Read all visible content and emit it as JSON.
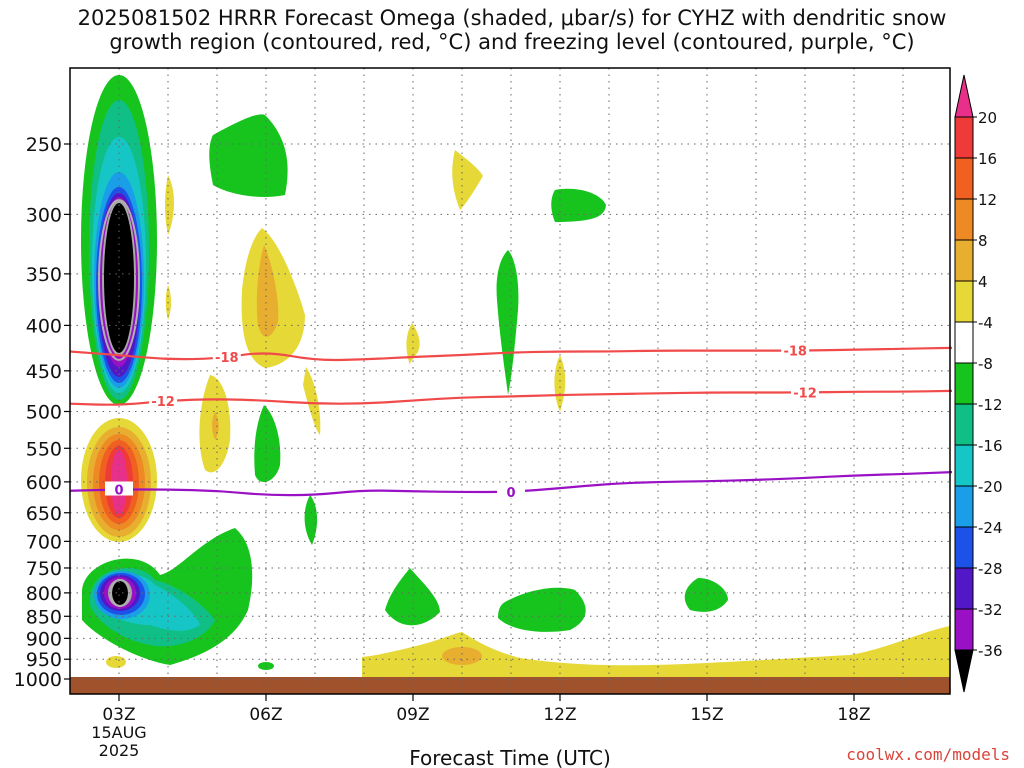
{
  "title": "2025081502 HRRR Forecast Omega (shaded, μbar/s) for CYHZ with dendritic snow\ngrowth region (contoured, red, °C) and freezing level (contoured, purple, °C)",
  "credit": "coolwx.com/models",
  "chart_data": {
    "type": "time-height cross-section",
    "title": "2025081502 HRRR Forecast Omega (shaded, μbar/s) for CYHZ with dendritic snow growth region (contoured, red, °C) and freezing level (contoured, purple, °C)",
    "xlabel": "Forecast Time (UTC)",
    "ylabel": "",
    "x_ticks": [
      {
        "hour": 3,
        "label": "03Z",
        "sub": [
          "15AUG",
          "2025"
        ]
      },
      {
        "hour": 6,
        "label": "06Z"
      },
      {
        "hour": 9,
        "label": "09Z"
      },
      {
        "hour": 12,
        "label": "12Z"
      },
      {
        "hour": 15,
        "label": "15Z"
      },
      {
        "hour": 18,
        "label": "18Z"
      }
    ],
    "xlim": [
      2,
      20
    ],
    "y_ticks": [
      250,
      300,
      350,
      400,
      450,
      500,
      550,
      600,
      650,
      700,
      750,
      800,
      850,
      900,
      950,
      1000
    ],
    "ylim_hPa": [
      200,
      1010
    ],
    "colorbar": {
      "labels": [
        20,
        16,
        12,
        8,
        4,
        -4,
        -8,
        -12,
        -16,
        -20,
        -24,
        -28,
        -32,
        -36
      ],
      "colors": [
        "#e8308a",
        "#ef3a3a",
        "#f06020",
        "#ee8a24",
        "#e8ae30",
        "#e6d837",
        "#ffffff",
        "#17c41e",
        "#0fbf86",
        "#16c6c6",
        "#1a9ee8",
        "#1c52e8",
        "#5218c8",
        "#9a10c4",
        "#a8a8a8",
        "#000000"
      ]
    },
    "contours": [
      {
        "name": "-18",
        "color": "#f04a4a",
        "label_positions": [
          5.2,
          16.8
        ],
        "points": [
          [
            2,
            428
          ],
          [
            3,
            432
          ],
          [
            4,
            437
          ],
          [
            5,
            436
          ],
          [
            6,
            428
          ],
          [
            7,
            438
          ],
          [
            8,
            437
          ],
          [
            9,
            434
          ],
          [
            10,
            432
          ],
          [
            11,
            429
          ],
          [
            12,
            428
          ],
          [
            13,
            428
          ],
          [
            14,
            427
          ],
          [
            15,
            427
          ],
          [
            16,
            427
          ],
          [
            17,
            427
          ],
          [
            18,
            426
          ],
          [
            19,
            425
          ],
          [
            20,
            424
          ]
        ]
      },
      {
        "name": "-12",
        "color": "#f04a4a",
        "label_positions": [
          3.9,
          17.0
        ],
        "points": [
          [
            2,
            490
          ],
          [
            3,
            492
          ],
          [
            4,
            486
          ],
          [
            5,
            484
          ],
          [
            6,
            486
          ],
          [
            7,
            490
          ],
          [
            8,
            490
          ],
          [
            9,
            486
          ],
          [
            10,
            482
          ],
          [
            11,
            481
          ],
          [
            12,
            479
          ],
          [
            13,
            478
          ],
          [
            14,
            477
          ],
          [
            15,
            476
          ],
          [
            16,
            476
          ],
          [
            17,
            476
          ],
          [
            18,
            475
          ],
          [
            19,
            475
          ],
          [
            20,
            474
          ]
        ]
      },
      {
        "name": "0",
        "color": "#9a10c4",
        "label_positions": [
          3.0,
          11.0
        ],
        "points": [
          [
            2,
            614
          ],
          [
            3,
            612
          ],
          [
            4,
            612
          ],
          [
            5,
            614
          ],
          [
            6,
            621
          ],
          [
            7,
            621
          ],
          [
            8,
            613
          ],
          [
            9,
            615
          ],
          [
            10,
            616
          ],
          [
            11,
            616
          ],
          [
            12,
            610
          ],
          [
            13,
            603
          ],
          [
            14,
            600
          ],
          [
            15,
            599
          ],
          [
            16,
            597
          ],
          [
            17,
            594
          ],
          [
            18,
            590
          ],
          [
            19,
            588
          ],
          [
            20,
            585
          ]
        ]
      }
    ],
    "omega_regions": [
      {
        "level": "-8",
        "color": "#17c41e",
        "x": [
          2.3,
          3.7
        ],
        "p": [
          210,
          480
        ]
      },
      {
        "level": "-8",
        "color": "#17c41e",
        "x": [
          5.0,
          6.5
        ],
        "p": [
          235,
          290
        ]
      },
      {
        "level": "-8",
        "color": "#17c41e",
        "x": [
          10.7,
          11.3
        ],
        "p": [
          355,
          470
        ]
      },
      {
        "level": "-8",
        "color": "#17c41e",
        "x": [
          12.3,
          13.5
        ],
        "p": [
          285,
          305
        ]
      },
      {
        "level": "-8",
        "color": "#17c41e",
        "x": [
          5.7,
          6.3
        ],
        "p": [
          515,
          600
        ]
      },
      {
        "level": "-8",
        "color": "#17c41e",
        "x": [
          6.9,
          7.2
        ],
        "p": [
          655,
          720
        ]
      },
      {
        "level": "-8",
        "color": "#17c41e",
        "x": [
          2.3,
          5.5
        ],
        "p": [
          730,
          935
        ]
      },
      {
        "level": "-8",
        "color": "#17c41e",
        "x": [
          8.5,
          9.6
        ],
        "p": [
          770,
          870
        ]
      },
      {
        "level": "-8",
        "color": "#17c41e",
        "x": [
          10.8,
          12.5
        ],
        "p": [
          790,
          870
        ]
      },
      {
        "level": "-8",
        "color": "#17c41e",
        "x": [
          14.6,
          15.4
        ],
        "p": [
          785,
          835
        ]
      },
      {
        "level": "4",
        "color": "#e6d837",
        "x": [
          2.3,
          3.8
        ],
        "p": [
          530,
          700
        ]
      },
      {
        "level": "4",
        "color": "#e6d837",
        "x": [
          5.4,
          6.8
        ],
        "p": [
          325,
          440
        ]
      },
      {
        "level": "4",
        "color": "#e6d837",
        "x": [
          4.7,
          5.4
        ],
        "p": [
          480,
          590
        ]
      },
      {
        "level": "4",
        "color": "#e6d837",
        "x": [
          7.6,
          20
        ],
        "p": [
          880,
          1000
        ]
      },
      {
        "level": "8",
        "color": "#e8ae30",
        "x": [
          5.8,
          6.3
        ],
        "p": [
          345,
          420
        ]
      },
      {
        "level": "8",
        "color": "#e8ae30",
        "x": [
          9.7,
          10.3
        ],
        "p": [
          940,
          965
        ]
      },
      {
        "level": "-36",
        "color": "#000000",
        "x": [
          2.7,
          3.3
        ],
        "p": [
          295,
          430
        ]
      },
      {
        "level": "20",
        "color": "#e8308a",
        "x": [
          2.8,
          3.2
        ],
        "p": [
          565,
          660
        ]
      }
    ]
  }
}
